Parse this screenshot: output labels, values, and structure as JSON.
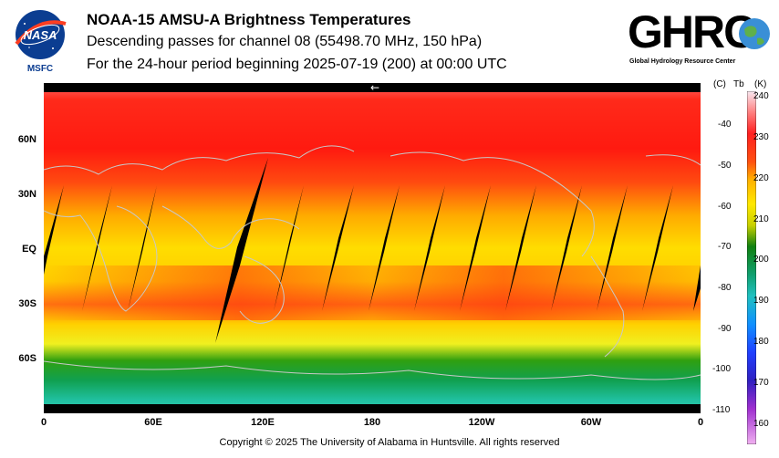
{
  "header": {
    "title": "NOAA-15 AMSU-A Brightness Temperatures",
    "subtitle": "Descending passes for channel 08 (55498.70 MHz, 150 hPa)",
    "period": "For the 24-hour period beginning 2025-07-19 (200) at 00:00 UTC"
  },
  "logos": {
    "nasa_text": "NASA",
    "msfc_text": "MSFC",
    "ghrc_text": "GHRC",
    "ghrc_subtext": "Global Hydrology Resource Center"
  },
  "map": {
    "lat_labels": [
      "60N",
      "30N",
      "EQ",
      "30S",
      "60S"
    ],
    "lon_labels": [
      "0",
      "60E",
      "120E",
      "180",
      "120W",
      "60W",
      "0"
    ],
    "direction_arrow": "←"
  },
  "colorbar": {
    "header_c": "(C)",
    "header_tb": "Tb",
    "header_k": "(K)",
    "c_labels": [
      "-40",
      "-50",
      "-60",
      "-70",
      "-80",
      "-90",
      "-100",
      "-110"
    ],
    "k_labels": [
      "240",
      "230",
      "220",
      "210",
      "200",
      "190",
      "180",
      "170",
      "160"
    ],
    "colors": [
      "#f4d8e8",
      "#ff2020",
      "#ff7a00",
      "#ffe000",
      "#20a000",
      "#00a0a0",
      "#1080ff",
      "#2020d0",
      "#d040d0"
    ]
  },
  "footer": {
    "copyright": "Copyright © 2025 The University of Alabama in Huntsville.  All rights reserved"
  }
}
